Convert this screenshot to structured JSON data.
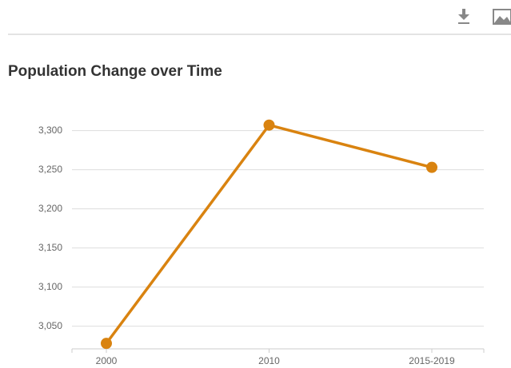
{
  "chart_data": {
    "type": "line",
    "title": "Population Change over Time",
    "categories": [
      "2000",
      "2010",
      "2015-2019"
    ],
    "values": [
      3028,
      3307,
      3253
    ],
    "color": "#d98310",
    "ylim": [
      3021,
      3321
    ],
    "yticks": [
      {
        "value": 3050,
        "label": "3,050"
      },
      {
        "value": 3100,
        "label": "3,100"
      },
      {
        "value": 3150,
        "label": "3,150"
      },
      {
        "value": 3200,
        "label": "3,200"
      },
      {
        "value": 3250,
        "label": "3,250"
      },
      {
        "value": 3300,
        "label": "3,300"
      }
    ],
    "grid": true
  }
}
